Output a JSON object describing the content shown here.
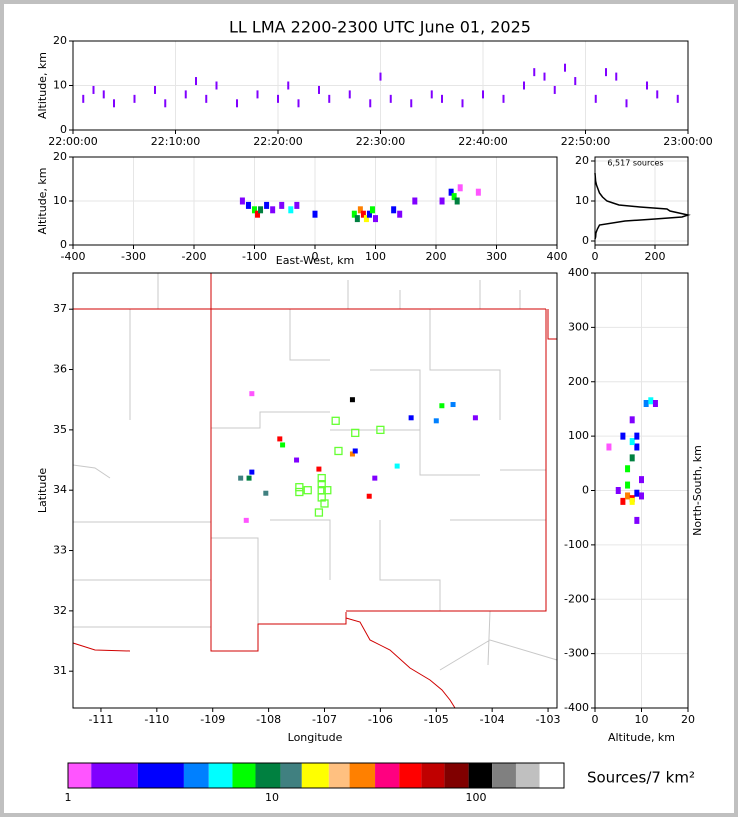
{
  "title": "LL LMA 2200-2300 UTC June 01, 2025",
  "chart_data": [
    {
      "type": "scatter",
      "ylabel": "Altitude, km",
      "xlim": [
        0,
        60
      ],
      "ylim": [
        0,
        20
      ],
      "xticks": [
        {
          "value": 0,
          "label": "22:00:00"
        },
        {
          "value": 10,
          "label": "22:10:00"
        },
        {
          "value": 20,
          "label": "22:20:00"
        },
        {
          "value": 30,
          "label": "22:30:00"
        },
        {
          "value": 40,
          "label": "22:40:00"
        },
        {
          "value": 50,
          "label": "22:50:00"
        },
        {
          "value": 60,
          "label": "23:00:00"
        }
      ],
      "yticks": [
        0,
        10,
        20
      ],
      "grid": true,
      "color": "#8000ff",
      "x": [
        1,
        3,
        4,
        6,
        8,
        9,
        11,
        13,
        14,
        16,
        18,
        20,
        22,
        24,
        25,
        27,
        29,
        31,
        33,
        35,
        36,
        38,
        40,
        42,
        44,
        46,
        47,
        49,
        51,
        52,
        54,
        56,
        57,
        59,
        2,
        12,
        21,
        30,
        45,
        48,
        53
      ],
      "values": [
        7,
        8,
        6,
        7,
        9,
        6,
        8,
        7,
        10,
        6,
        8,
        7,
        6,
        9,
        7,
        8,
        6,
        7,
        6,
        8,
        7,
        6,
        8,
        7,
        10,
        12,
        9,
        11,
        7,
        13,
        6,
        10,
        8,
        7,
        9,
        11,
        10,
        12,
        13,
        14,
        12
      ]
    },
    {
      "type": "scatter",
      "xlabel": "East-West, km",
      "ylabel": "Altitude, km",
      "xlim": [
        -400,
        400
      ],
      "ylim": [
        0,
        20
      ],
      "xticks": [
        -400,
        -300,
        -200,
        -100,
        0,
        100,
        200,
        300,
        400
      ],
      "yticks": [
        0,
        10,
        20
      ],
      "grid": true,
      "x": [
        -120,
        -110,
        -100,
        -95,
        -90,
        -80,
        -70,
        -55,
        -40,
        -30,
        0,
        65,
        70,
        75,
        80,
        85,
        90,
        95,
        100,
        130,
        140,
        165,
        210,
        225,
        230,
        235,
        240,
        270
      ],
      "values": [
        10,
        9,
        8,
        7,
        8,
        9,
        8,
        9,
        8,
        9,
        7,
        7,
        6,
        8,
        7,
        6,
        7,
        8,
        6,
        8,
        7,
        10,
        10,
        12,
        11,
        10,
        13,
        12
      ],
      "colors": [
        "#8000ff",
        "#0000ff",
        "#00ff00",
        "#ff0000",
        "#008040",
        "#0000ff",
        "#8000ff",
        "#8000ff",
        "#00ffff",
        "#8000ff",
        "#0000ff",
        "#00ff00",
        "#008040",
        "#ff8000",
        "#ff0000",
        "#ffff00",
        "#0000ff",
        "#00ff00",
        "#8000ff",
        "#0000ff",
        "#8000ff",
        "#8000ff",
        "#8000ff",
        "#0000ff",
        "#00ff00",
        "#008040",
        "#ff55ff",
        "#ff55ff"
      ]
    },
    {
      "type": "line",
      "annotation": "6,517 sources",
      "xlim": [
        0,
        310
      ],
      "ylim": [
        -1,
        21
      ],
      "xticks": [
        0,
        200
      ],
      "yticks": [
        0,
        10,
        20
      ],
      "grid": true,
      "color": "#000000",
      "x": [
        0,
        2,
        3,
        8,
        15,
        100,
        200,
        290,
        310,
        280,
        250,
        240,
        150,
        80,
        60,
        40,
        25,
        15,
        10,
        5,
        2,
        0
      ],
      "values": [
        0.5,
        1,
        2,
        3,
        4,
        5,
        5.5,
        6,
        6.5,
        7,
        7.5,
        8,
        8.5,
        9,
        9.5,
        10,
        11,
        12,
        13,
        14,
        15,
        17
      ]
    },
    {
      "type": "scatter",
      "xlabel": "Longitude",
      "ylabel": "Latitude",
      "xlim": [
        -111.5,
        -102.84
      ],
      "ylim": [
        30.39,
        37.6
      ],
      "xticks": [
        -111,
        -110,
        -109,
        -108,
        -107,
        -106,
        -105,
        -104,
        -103
      ],
      "yticks": [
        31,
        32,
        33,
        34,
        35,
        36,
        37
      ],
      "grid": false,
      "x": [
        -108.3,
        -108.35,
        -108.05,
        -107.8,
        -107.75,
        -107.1,
        -106.5,
        -106.45,
        -106.2,
        -106.1,
        -105.7,
        -105.45,
        -104.9,
        -104.7,
        -104.3,
        -105,
        -108.3,
        -106.5,
        -108.4,
        -108.5,
        -107.5
      ],
      "values": [
        34.3,
        34.2,
        33.95,
        34.85,
        34.75,
        34.35,
        34.6,
        34.65,
        33.9,
        34.2,
        34.4,
        35.2,
        35.4,
        35.42,
        35.2,
        35.15,
        35.6,
        35.5,
        33.5,
        34.2,
        34.5
      ],
      "colors": [
        "#0000ff",
        "#008040",
        "#408080",
        "#ff0000",
        "#00ff00",
        "#ff0000",
        "#ff8000",
        "#0000ff",
        "#ff0000",
        "#8000ff",
        "#00ffff",
        "#0000ff",
        "#00ff00",
        "#0080ff",
        "#8000ff",
        "#0080ff",
        "#ff55ff",
        "#000000",
        "#ff55ff",
        "#408080",
        "#8000ff"
      ],
      "stations": {
        "color": "#66ff33",
        "x": [
          -106.8,
          -106.45,
          -106,
          -106.75,
          -107.05,
          -107.45,
          -107.45,
          -107.3,
          -107.05,
          -107.05,
          -106.95,
          -107.05,
          -107,
          -107.1
        ],
        "y": [
          35.15,
          34.95,
          35,
          34.65,
          34.2,
          34.05,
          33.97,
          34,
          34,
          34.1,
          34,
          33.88,
          33.78,
          33.63
        ]
      }
    },
    {
      "type": "scatter",
      "xlabel": "Altitude, km",
      "ylabel": "North-South, km",
      "xlim": [
        0,
        20
      ],
      "ylim": [
        -400,
        400
      ],
      "xticks": [
        0,
        10,
        20
      ],
      "yticks": [
        -400,
        -300,
        -200,
        -100,
        0,
        100,
        200,
        300,
        400
      ],
      "grid": true,
      "x": [
        6,
        7,
        8,
        9,
        10,
        7,
        8,
        9,
        6,
        8,
        10,
        11,
        12,
        13,
        8,
        9,
        3,
        5,
        7,
        8,
        9
      ],
      "values": [
        -20,
        -10,
        -15,
        -5,
        -10,
        40,
        60,
        80,
        100,
        90,
        20,
        160,
        165,
        160,
        130,
        -55,
        80,
        0,
        10,
        -20,
        100
      ],
      "colors": [
        "#ff0000",
        "#ff8000",
        "#ff0000",
        "#0000ff",
        "#8000ff",
        "#00ff00",
        "#008040",
        "#0000ff",
        "#0000ff",
        "#00ffff",
        "#8000ff",
        "#0080ff",
        "#00ffff",
        "#8000ff",
        "#8000ff",
        "#8000ff",
        "#ff55ff",
        "#8000ff",
        "#00ff00",
        "#ffff00",
        "#0000ff"
      ]
    }
  ],
  "colorbar": {
    "label": "Sources/7 km²",
    "xlim": [
      1,
      270
    ],
    "log": true,
    "ticks": [
      1,
      10,
      100
    ],
    "bounds": [
      1,
      1.3,
      2.2,
      3.7,
      4.9,
      6.4,
      8.3,
      11,
      14,
      19,
      24,
      32,
      42,
      54,
      70,
      92,
      120,
      157,
      205,
      270
    ],
    "colors": [
      "#ff55ff",
      "#8000ff",
      "#0000ff",
      "#0080ff",
      "#00ffff",
      "#00ff00",
      "#008040",
      "#408080",
      "#ffff00",
      "#ffc080",
      "#ff8000",
      "#ff0080",
      "#ff0000",
      "#c00000",
      "#800000",
      "#000000",
      "#808080",
      "#c0c0c0",
      "#ffffff"
    ]
  }
}
